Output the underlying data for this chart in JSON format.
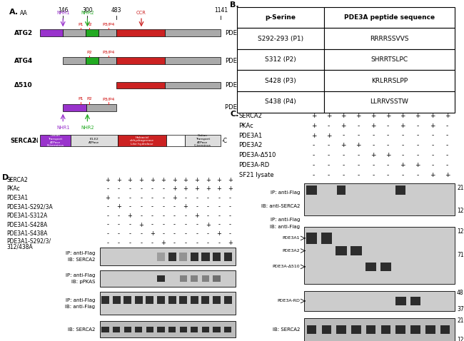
{
  "panel_B": {
    "headers": [
      "p-Serine",
      "PDE3A peptide sequence"
    ],
    "rows": [
      [
        "S292-293 (P1)",
        "RRRRSSVVS"
      ],
      [
        "S312 (P2)",
        "SHRRTSLPC"
      ],
      [
        "S428 (P3)",
        "KRLRRSLPP"
      ],
      [
        "S438 (P4)",
        "LLRRVSSTW"
      ]
    ]
  },
  "panel_C": {
    "rows": [
      "SERCA2",
      "PKAc",
      "PDE3A1",
      "PDE3A2",
      "PDE3A-Δ510",
      "PDE3A-RD",
      "SF21 lysate"
    ],
    "cols": [
      [
        "+",
        "+",
        "+",
        "-",
        "-",
        "-",
        "-"
      ],
      [
        "+",
        "-",
        "+",
        "-",
        "-",
        "-",
        "-"
      ],
      [
        "+",
        "+",
        "-",
        "+",
        "-",
        "-",
        "-"
      ],
      [
        "+",
        "-",
        "-",
        "+",
        "-",
        "-",
        "-"
      ],
      [
        "+",
        "+",
        "-",
        "-",
        "+",
        "-",
        "-"
      ],
      [
        "+",
        "-",
        "-",
        "-",
        "+",
        "-",
        "-"
      ],
      [
        "+",
        "+",
        "-",
        "-",
        "-",
        "+",
        "-"
      ],
      [
        "+",
        "-",
        "-",
        "-",
        "-",
        "+",
        "-"
      ],
      [
        "+",
        "+",
        "-",
        "-",
        "-",
        "-",
        "+"
      ],
      [
        "+",
        "-",
        "-",
        "-",
        "-",
        "-",
        "+"
      ]
    ]
  },
  "panel_D": {
    "rows": [
      "SERCA2",
      "PKAc",
      "PDE3A1",
      "PDE3A1-S292/3A",
      "PDE3A1-S312A",
      "PDE3A1-S428A",
      "PDE3A1-S438A",
      "PDE3A1-S292/3/\n312/438A"
    ],
    "cols": [
      [
        "+",
        "-",
        "+",
        "-",
        "-",
        "-",
        "-",
        "-"
      ],
      [
        "+",
        "-",
        "-",
        "+",
        "-",
        "-",
        "-",
        "-"
      ],
      [
        "+",
        "-",
        "-",
        "-",
        "+",
        "-",
        "-",
        "-"
      ],
      [
        "+",
        "-",
        "-",
        "-",
        "-",
        "+",
        "-",
        "-"
      ],
      [
        "+",
        "-",
        "-",
        "-",
        "-",
        "-",
        "+",
        "-"
      ],
      [
        "+",
        "-",
        "-",
        "-",
        "-",
        "-",
        "-",
        "+"
      ],
      [
        "+",
        "+",
        "+",
        "-",
        "-",
        "-",
        "-",
        "-"
      ],
      [
        "+",
        "+",
        "-",
        "+",
        "-",
        "-",
        "-",
        "-"
      ],
      [
        "+",
        "+",
        "-",
        "-",
        "+",
        "-",
        "-",
        "-"
      ],
      [
        "+",
        "+",
        "-",
        "-",
        "-",
        "+",
        "-",
        "-"
      ],
      [
        "+",
        "+",
        "-",
        "-",
        "-",
        "-",
        "+",
        "-"
      ],
      [
        "+",
        "+",
        "-",
        "-",
        "-",
        "-",
        "-",
        "+"
      ]
    ]
  }
}
